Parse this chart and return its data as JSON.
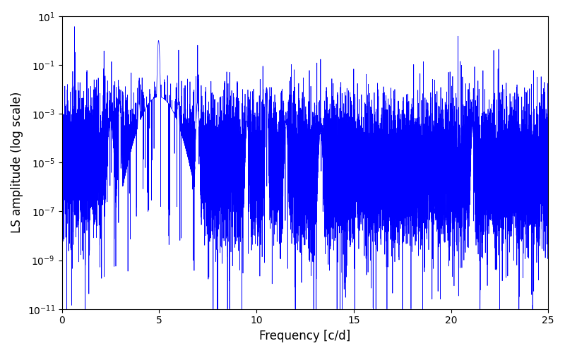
{
  "title": "",
  "xlabel": "Frequency [c/d]",
  "ylabel": "LS amplitude (log scale)",
  "line_color": "#0000ff",
  "line_width": 0.5,
  "xlim": [
    0,
    25
  ],
  "ylim": [
    1e-11,
    10
  ],
  "freq_min": 0.0,
  "freq_max": 25.0,
  "n_points": 15000,
  "main_peak_freq": 4.97,
  "main_peak_amp": 1.0,
  "secondary_peak_freq": 10.52,
  "secondary_peak_amp": 0.012,
  "tertiary_peak_freq": 21.1,
  "tertiary_peak_amp": 0.00035,
  "noise_floor_log_mean": -5.3,
  "noise_floor_log_sigma": 1.4,
  "figsize": [
    8.0,
    5.0
  ],
  "dpi": 100
}
